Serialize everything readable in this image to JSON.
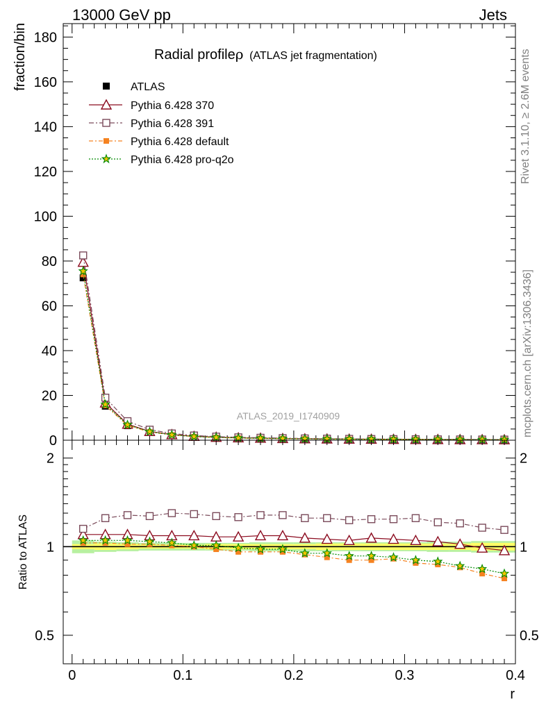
{
  "header": {
    "left": "13000 GeV pp",
    "right": "Jets"
  },
  "side_labels": {
    "rivet": "Rivet 3.1.10, ≥ 2.6M events",
    "mcplots": "mcplots.cern.ch [arXiv:1306.3436]"
  },
  "watermark": "ATLAS_2019_I1740909",
  "colors": {
    "atlas": "#000000",
    "p370": "#8b0a1e",
    "p391": "#7a4a5a",
    "pdefault": "#f58220",
    "pq2o": "#008a00",
    "band_inner": "#ffff66",
    "band_outer": "#b8f0a0"
  },
  "chart_data": [
    {
      "type": "line",
      "title": "Radial profile",
      "title_symbol": "ρ",
      "title_suffix": "(ATLAS jet fragmentation)",
      "ylabel": "fraction/bin",
      "xlabel": "",
      "xlim": [
        -0.008,
        0.4
      ],
      "ylim": [
        0,
        186
      ],
      "yticks": [
        0,
        20,
        40,
        60,
        80,
        100,
        120,
        140,
        160,
        180
      ],
      "yticklabels": [
        "0",
        "20",
        "40",
        "60",
        "80",
        "100",
        "120",
        "140",
        "160",
        "180"
      ],
      "grid": false,
      "legend_position": "top-left",
      "x": [
        0.01,
        0.03,
        0.05,
        0.07,
        0.09,
        0.11,
        0.13,
        0.15,
        0.17,
        0.19,
        0.21,
        0.23,
        0.25,
        0.27,
        0.29,
        0.31,
        0.33,
        0.35,
        0.37,
        0.39
      ],
      "series": [
        {
          "name": "ATLAS",
          "key": "atlas",
          "marker": "square",
          "values": [
            72.5,
            15.2,
            6.5,
            3.6,
            2.3,
            1.6,
            1.25,
            1.0,
            0.85,
            0.72,
            0.63,
            0.55,
            0.49,
            0.44,
            0.4,
            0.36,
            0.33,
            0.3,
            0.28,
            0.26
          ]
        },
        {
          "name": "Pythia 6.428 370",
          "key": "p370",
          "marker": "triangle",
          "values": [
            79.5,
            16.7,
            7.2,
            3.95,
            2.55,
            1.75,
            1.36,
            1.09,
            0.94,
            0.79,
            0.68,
            0.59,
            0.52,
            0.48,
            0.43,
            0.38,
            0.35,
            0.31,
            0.28,
            0.25
          ]
        },
        {
          "name": "Pythia 6.428 391",
          "key": "p391",
          "marker": "open-square",
          "values": [
            82.5,
            19.0,
            8.5,
            4.7,
            3.0,
            2.1,
            1.6,
            1.27,
            1.09,
            0.93,
            0.79,
            0.69,
            0.6,
            0.54,
            0.49,
            0.44,
            0.38,
            0.34,
            0.31,
            0.28
          ]
        },
        {
          "name": "Pythia 6.428 default",
          "key": "pdefault",
          "marker": "filled-square",
          "values": [
            74.0,
            15.5,
            6.6,
            3.7,
            2.35,
            1.6,
            1.22,
            0.96,
            0.82,
            0.69,
            0.59,
            0.51,
            0.45,
            0.4,
            0.37,
            0.32,
            0.29,
            0.26,
            0.23,
            0.2
          ]
        },
        {
          "name": "Pythia 6.428 pro-q2o",
          "key": "pq2o",
          "marker": "star",
          "values": [
            75.5,
            16.0,
            6.9,
            3.8,
            2.4,
            1.63,
            1.26,
            0.99,
            0.84,
            0.71,
            0.6,
            0.53,
            0.46,
            0.41,
            0.37,
            0.33,
            0.3,
            0.26,
            0.24,
            0.21
          ]
        }
      ]
    },
    {
      "type": "line",
      "title": "",
      "ylabel": "Ratio to ATLAS",
      "xlabel": "r",
      "scale": "log",
      "xlim": [
        -0.008,
        0.4
      ],
      "ylim": [
        0.4,
        2.3
      ],
      "xticks": [
        0,
        0.1,
        0.2,
        0.3,
        0.4
      ],
      "xticklabels": [
        "0",
        "0.1",
        "0.2",
        "0.3",
        "0.4"
      ],
      "yticks": [
        0.5,
        1,
        2
      ],
      "yticklabels": [
        "0.5",
        "1",
        "2"
      ],
      "grid": false,
      "reference_line": 1,
      "band_inner_halfwidth": [
        0.02,
        0.025,
        0.02,
        0.015,
        0.015,
        0.015,
        0.02,
        0.02,
        0.02,
        0.02,
        0.02,
        0.025,
        0.025,
        0.025,
        0.025,
        0.025,
        0.025,
        0.025,
        0.03,
        0.03
      ],
      "band_outer_halfwidth": [
        0.05,
        0.04,
        0.035,
        0.03,
        0.03,
        0.03,
        0.03,
        0.03,
        0.035,
        0.035,
        0.035,
        0.035,
        0.035,
        0.035,
        0.035,
        0.035,
        0.04,
        0.04,
        0.045,
        0.045
      ],
      "x": [
        0.01,
        0.03,
        0.05,
        0.07,
        0.09,
        0.11,
        0.13,
        0.15,
        0.17,
        0.19,
        0.21,
        0.23,
        0.25,
        0.27,
        0.29,
        0.31,
        0.33,
        0.35,
        0.37,
        0.39
      ],
      "series": [
        {
          "name": "Pythia 6.428 370",
          "key": "p370",
          "marker": "triangle",
          "values": [
            1.1,
            1.1,
            1.1,
            1.09,
            1.09,
            1.09,
            1.08,
            1.08,
            1.09,
            1.09,
            1.07,
            1.06,
            1.05,
            1.07,
            1.06,
            1.05,
            1.04,
            1.02,
            0.99,
            0.97
          ]
        },
        {
          "name": "Pythia 6.428 391",
          "key": "p391",
          "marker": "open-square",
          "values": [
            1.15,
            1.25,
            1.28,
            1.27,
            1.3,
            1.29,
            1.27,
            1.26,
            1.28,
            1.28,
            1.25,
            1.25,
            1.23,
            1.24,
            1.24,
            1.25,
            1.21,
            1.2,
            1.16,
            1.14
          ]
        },
        {
          "name": "Pythia 6.428 default",
          "key": "pdefault",
          "marker": "filled-square",
          "values": [
            1.03,
            1.03,
            1.02,
            1.02,
            1.01,
            1.0,
            0.98,
            0.96,
            0.96,
            0.96,
            0.94,
            0.92,
            0.9,
            0.9,
            0.91,
            0.88,
            0.87,
            0.85,
            0.81,
            0.78
          ]
        },
        {
          "name": "Pythia 6.428 pro-q2o",
          "key": "pq2o",
          "marker": "star",
          "values": [
            1.05,
            1.05,
            1.05,
            1.04,
            1.03,
            1.01,
            1.01,
            0.99,
            0.98,
            0.98,
            0.95,
            0.95,
            0.93,
            0.93,
            0.92,
            0.9,
            0.89,
            0.86,
            0.84,
            0.81
          ]
        }
      ]
    }
  ]
}
